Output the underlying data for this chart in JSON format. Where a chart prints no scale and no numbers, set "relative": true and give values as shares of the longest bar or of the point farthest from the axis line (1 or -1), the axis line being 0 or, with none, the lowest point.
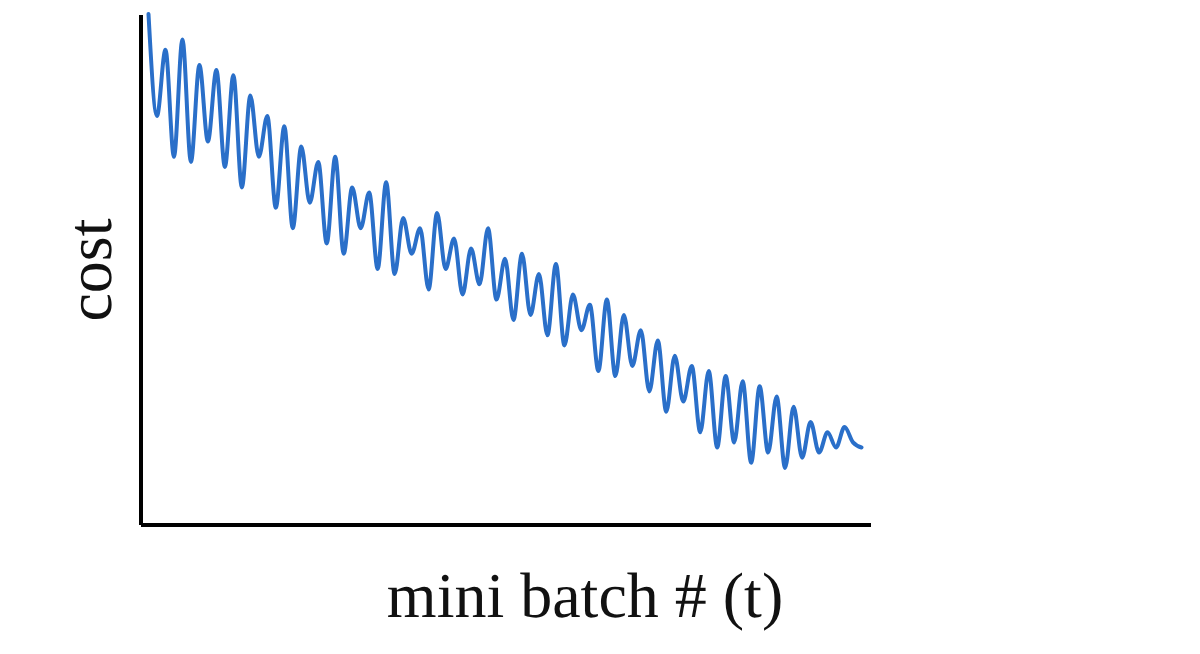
{
  "chart_data": {
    "type": "line",
    "xlabel": "mini batch # (t)",
    "ylabel": "cost",
    "relative": true,
    "grid": false,
    "tick_labels": false,
    "categories": [
      null,
      null,
      null,
      null,
      null,
      null,
      null,
      null,
      null,
      null,
      null,
      null,
      null,
      null,
      null,
      null,
      null,
      null,
      null,
      null,
      null,
      null,
      null,
      null,
      null,
      null,
      null,
      null,
      null,
      null,
      null,
      null,
      null,
      null,
      null,
      null,
      null,
      null,
      null,
      null,
      null,
      null,
      null,
      null,
      null,
      null,
      null,
      null,
      null,
      null,
      null,
      null,
      null,
      null,
      null,
      null,
      null,
      null,
      null,
      null,
      null,
      null,
      null,
      null,
      null,
      null,
      null,
      null,
      null,
      null,
      null,
      null,
      null,
      null,
      null,
      null,
      null,
      null,
      null,
      null,
      null,
      null,
      null,
      null,
      null
    ],
    "series": [
      {
        "color": "#2a6fc9",
        "values": [
          1.0,
          0.8,
          0.93,
          0.72,
          0.95,
          0.71,
          0.9,
          0.75,
          0.89,
          0.7,
          0.88,
          0.66,
          0.84,
          0.72,
          0.8,
          0.62,
          0.78,
          0.58,
          0.74,
          0.63,
          0.71,
          0.55,
          0.72,
          0.53,
          0.66,
          0.58,
          0.65,
          0.5,
          0.67,
          0.49,
          0.6,
          0.53,
          0.58,
          0.46,
          0.61,
          0.5,
          0.56,
          0.45,
          0.54,
          0.47,
          0.58,
          0.44,
          0.52,
          0.4,
          0.53,
          0.41,
          0.49,
          0.37,
          0.51,
          0.35,
          0.45,
          0.38,
          0.43,
          0.3,
          0.44,
          0.29,
          0.41,
          0.31,
          0.38,
          0.26,
          0.36,
          0.22,
          0.33,
          0.24,
          0.31,
          0.18,
          0.3,
          0.15,
          0.29,
          0.16,
          0.28,
          0.12,
          0.27,
          0.14,
          0.25,
          0.11,
          0.23,
          0.13,
          0.2,
          0.14,
          0.18,
          0.15,
          0.19,
          0.16,
          0.15
        ]
      }
    ]
  }
}
